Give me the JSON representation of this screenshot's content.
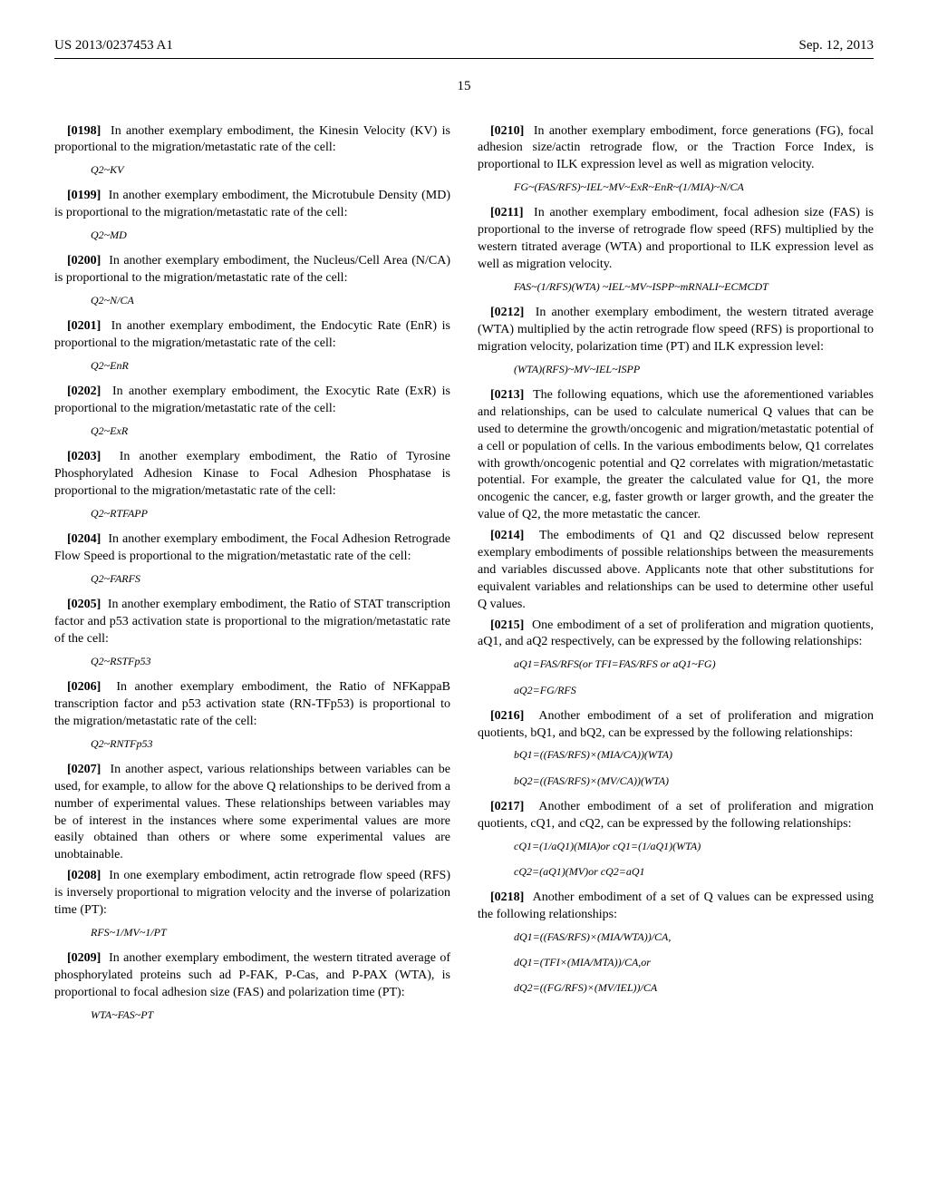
{
  "header": {
    "pubnum": "US 2013/0237453 A1",
    "date": "Sep. 12, 2013"
  },
  "pagenum": "15",
  "left": [
    {
      "type": "para",
      "num": "[0198]",
      "text": "In another exemplary embodiment, the Kinesin Velocity (KV) is proportional to the migration/metastatic rate of the cell:"
    },
    {
      "type": "formula",
      "text": "Q2~KV"
    },
    {
      "type": "para",
      "num": "[0199]",
      "text": "In another exemplary embodiment, the Microtubule Density (MD) is proportional to the migration/metastatic rate of the cell:"
    },
    {
      "type": "formula",
      "text": "Q2~MD"
    },
    {
      "type": "para",
      "num": "[0200]",
      "text": "In another exemplary embodiment, the Nucleus/Cell Area (N/CA) is proportional to the migration/metastatic rate of the cell:"
    },
    {
      "type": "formula",
      "text": "Q2~N/CA"
    },
    {
      "type": "para",
      "num": "[0201]",
      "text": "In another exemplary embodiment, the Endocytic Rate (EnR) is proportional to the migration/metastatic rate of the cell:"
    },
    {
      "type": "formula",
      "text": "Q2~EnR"
    },
    {
      "type": "para",
      "num": "[0202]",
      "text": "In another exemplary embodiment, the Exocytic Rate (ExR) is proportional to the migration/metastatic rate of the cell:"
    },
    {
      "type": "formula",
      "text": "Q2~ExR"
    },
    {
      "type": "para",
      "num": "[0203]",
      "text": "In another exemplary embodiment, the Ratio of Tyrosine Phosphorylated Adhesion Kinase to Focal Adhesion Phosphatase is proportional to the migration/metastatic rate of the cell:"
    },
    {
      "type": "formula",
      "text": "Q2~RTFAPP"
    },
    {
      "type": "para",
      "num": "[0204]",
      "text": "In another exemplary embodiment, the Focal Adhesion Retrograde Flow Speed is proportional to the migration/metastatic rate of the cell:"
    },
    {
      "type": "formula",
      "text": "Q2~FARFS"
    },
    {
      "type": "para",
      "num": "[0205]",
      "text": "In another exemplary embodiment, the Ratio of STAT transcription factor and p53 activation state is proportional to the migration/metastatic rate of the cell:"
    },
    {
      "type": "formula",
      "text": "Q2~RSTFp53"
    },
    {
      "type": "para",
      "num": "[0206]",
      "text": "In another exemplary embodiment, the Ratio of NFKappaB transcription factor and p53 activation state (RN-TFp53) is proportional to the migration/metastatic rate of the cell:"
    },
    {
      "type": "formula",
      "text": "Q2~RNTFp53"
    },
    {
      "type": "para",
      "num": "[0207]",
      "text": "In another aspect, various relationships between variables can be used, for example, to allow for the above Q relationships to be derived from a number of experimental values. These relationships between variables may be of interest in the instances where some experimental values are more easily obtained than others or where some experimental values are unobtainable."
    },
    {
      "type": "para",
      "num": "[0208]",
      "text": "In one exemplary embodiment, actin retrograde flow speed (RFS) is inversely proportional to migration velocity and the inverse of polarization time (PT):"
    },
    {
      "type": "formula",
      "text": "RFS~1/MV~1/PT"
    },
    {
      "type": "para",
      "num": "[0209]",
      "text": "In another exemplary embodiment, the western titrated average of phosphorylated proteins such ad P-FAK, P-Cas, and P-PAX (WTA), is proportional to focal adhesion size (FAS) and polarization time (PT):"
    },
    {
      "type": "formula",
      "text": "WTA~FAS~PT"
    }
  ],
  "right": [
    {
      "type": "para",
      "num": "[0210]",
      "text": "In another exemplary embodiment, force generations (FG), focal adhesion size/actin retrograde flow, or the Traction Force Index, is proportional to ILK expression level as well as migration velocity."
    },
    {
      "type": "formula",
      "text": "FG~(FAS/RFS)~IEL~MV~ExR~EnR~(1/MIA)~N/CA"
    },
    {
      "type": "para",
      "num": "[0211]",
      "text": "In another exemplary embodiment, focal adhesion size (FAS) is proportional to the inverse of retrograde flow speed (RFS) multiplied by the western titrated average (WTA) and proportional to ILK expression level as well as migration velocity."
    },
    {
      "type": "formula",
      "text": "FAS~(1/RFS)(WTA) ~IEL~MV~ISPP~mRNALI~ECMCDT"
    },
    {
      "type": "para",
      "num": "[0212]",
      "text": "In another exemplary embodiment, the western titrated average (WTA) multiplied by the actin retrograde flow speed (RFS) is proportional to migration velocity, polarization time (PT) and ILK expression level:"
    },
    {
      "type": "formula",
      "text": "(WTA)(RFS)~MV~IEL~ISPP"
    },
    {
      "type": "para",
      "num": "[0213]",
      "text": "The following equations, which use the aforementioned variables and relationships, can be used to calculate numerical Q values that can be used to determine the growth/oncogenic and migration/metastatic potential of a cell or population of cells. In the various embodiments below, Q1 correlates with growth/oncogenic potential and Q2 correlates with migration/metastatic potential. For example, the greater the calculated value for Q1, the more oncogenic the cancer, e.g, faster growth or larger growth, and the greater the value of Q2, the more metastatic the cancer."
    },
    {
      "type": "para",
      "num": "[0214]",
      "text": "The embodiments of Q1 and Q2 discussed below represent exemplary embodiments of possible relationships between the measurements and variables discussed above. Applicants note that other substitutions for equivalent variables and relationships can be used to determine other useful Q values."
    },
    {
      "type": "para",
      "num": "[0215]",
      "text": "One embodiment of a set of proliferation and migration quotients, aQ1, and aQ2 respectively, can be expressed by the following relationships:"
    },
    {
      "type": "formula",
      "text": "aQ1=FAS/RFS(or TFI=FAS/RFS or aQ1~FG)"
    },
    {
      "type": "formula",
      "text": "aQ2=FG/RFS"
    },
    {
      "type": "para",
      "num": "[0216]",
      "text": "Another embodiment of a set of proliferation and migration quotients, bQ1, and bQ2, can be expressed by the following relationships:"
    },
    {
      "type": "formula",
      "text": "bQ1=((FAS/RFS)×(MIA/CA))(WTA)"
    },
    {
      "type": "formula",
      "text": "bQ2=((FAS/RFS)×(MV/CA))(WTA)"
    },
    {
      "type": "para",
      "num": "[0217]",
      "text": "Another embodiment of a set of proliferation and migration quotients, cQ1, and cQ2, can be expressed by the following relationships:"
    },
    {
      "type": "formula",
      "text": "cQ1=(1/aQ1)(MIA)or cQ1=(1/aQ1)(WTA)"
    },
    {
      "type": "formula",
      "text": "cQ2=(aQ1)(MV)or cQ2=aQ1"
    },
    {
      "type": "para",
      "num": "[0218]",
      "text": "Another embodiment of a set of Q values can be expressed using the following relationships:"
    },
    {
      "type": "formula",
      "text": "dQ1=((FAS/RFS)×(MIA/WTA))/CA,"
    },
    {
      "type": "formula",
      "text": "dQ1=(TFI×(MIA/MTA))/CA,or"
    },
    {
      "type": "formula",
      "text": "dQ2=((FG/RFS)×(MV/IEL))/CA"
    }
  ]
}
